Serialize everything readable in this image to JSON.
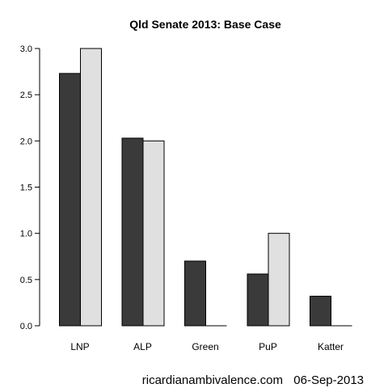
{
  "chart_data": {
    "type": "bar",
    "title": "Qld Senate 2013: Base Case",
    "xlabel": "",
    "ylabel": "",
    "categories": [
      "LNP",
      "ALP",
      "Green",
      "PuP",
      "Katter"
    ],
    "series": [
      {
        "values": [
          2.73,
          2.03,
          0.7,
          0.56,
          0.32
        ],
        "color": "#3a3a3a"
      },
      {
        "values": [
          3.0,
          2.0,
          0.0,
          1.0,
          0.0
        ],
        "color": "#e0e0e0"
      }
    ],
    "ylim": [
      0,
      3.0
    ],
    "yticks": [
      "0.0",
      "0.5",
      "1.0",
      "1.5",
      "2.0",
      "2.5",
      "3.0"
    ],
    "grid": false,
    "legend": "none"
  },
  "footer": {
    "site": "ricardianambivalence.com",
    "date": "06-Sep-2013"
  }
}
